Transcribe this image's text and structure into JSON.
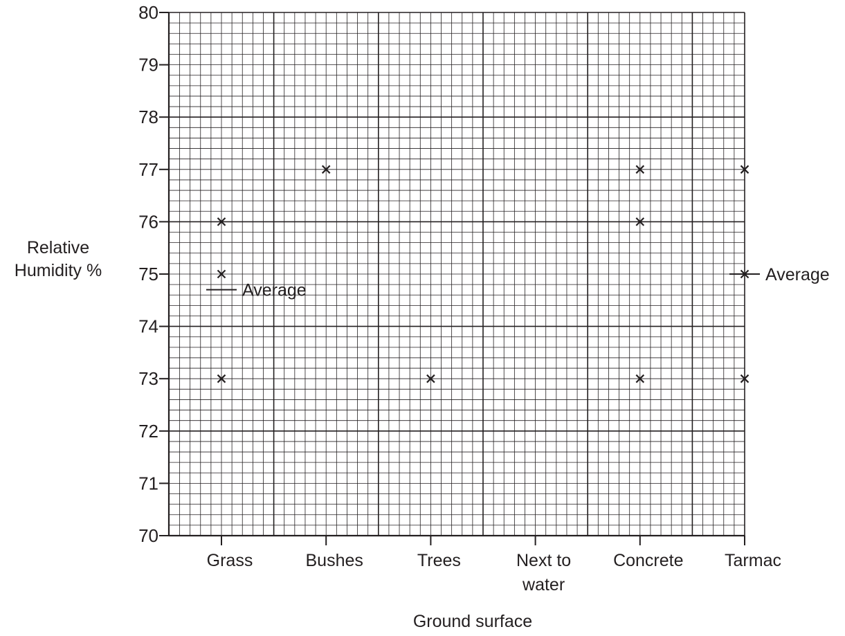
{
  "chart_data": {
    "type": "scatter",
    "title": "",
    "xlabel": "Ground surface",
    "ylabel_lines": [
      "Relative",
      "Humidity %"
    ],
    "categories": [
      [
        "Grass"
      ],
      [
        "Bushes"
      ],
      [
        "Trees"
      ],
      [
        "Next to",
        "water"
      ],
      [
        "Concrete"
      ],
      [
        "Tarmac"
      ]
    ],
    "ylim": [
      70,
      80
    ],
    "y_ticks": [
      70,
      71,
      72,
      73,
      74,
      75,
      76,
      77,
      78,
      79,
      80
    ],
    "grid": true,
    "marker": "x",
    "points": [
      {
        "category": "Grass",
        "y": 76
      },
      {
        "category": "Grass",
        "y": 75
      },
      {
        "category": "Grass",
        "y": 73
      },
      {
        "category": "Bushes",
        "y": 77
      },
      {
        "category": "Trees",
        "y": 73
      },
      {
        "category": "Concrete",
        "y": 77
      },
      {
        "category": "Concrete",
        "y": 76
      },
      {
        "category": "Concrete",
        "y": 73
      },
      {
        "category": "Tarmac",
        "y": 77
      },
      {
        "category": "Tarmac",
        "y": 75
      },
      {
        "category": "Tarmac",
        "y": 73
      }
    ],
    "annotations": [
      {
        "category": "Grass",
        "y": 74.7,
        "text": "Average",
        "side": "right-of-line"
      },
      {
        "category": "Tarmac",
        "y": 75,
        "text": "Average",
        "side": "right-of-line"
      }
    ]
  },
  "colors": {
    "ink": "#231f20",
    "background": "#ffffff"
  }
}
